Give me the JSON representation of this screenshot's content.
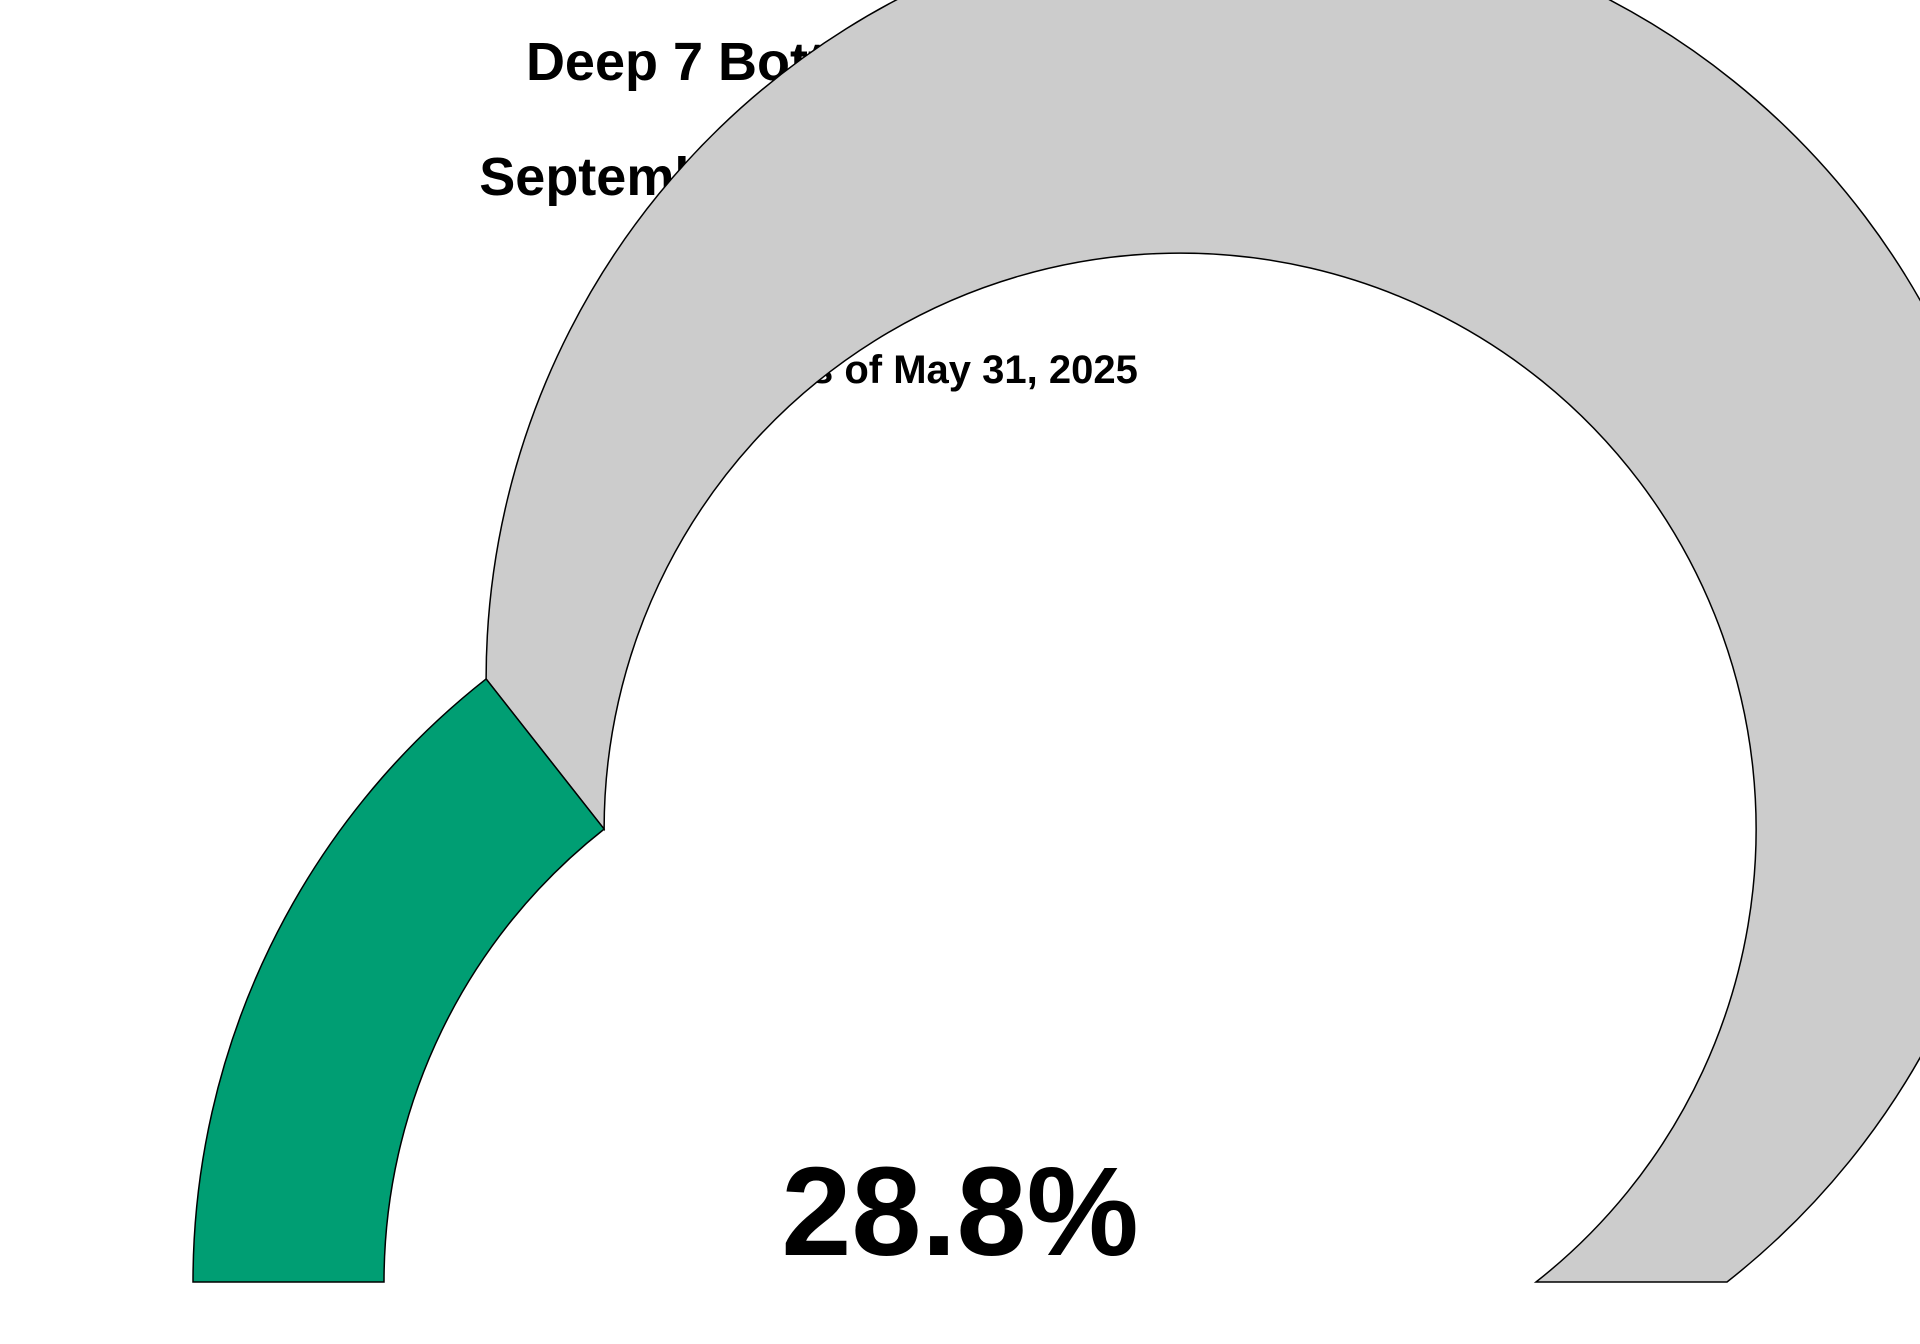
{
  "chart_data": {
    "type": "gauge",
    "title": "Deep 7 Bottomfish Annual Season",
    "subtitle": "September 01, 2024 - August 31, 2025",
    "caption": "As of May 31, 2025",
    "value": 28.8,
    "value_label": "28.8%",
    "range": [
      0,
      100
    ],
    "colors": {
      "filled": "#009E73",
      "remaining": "#CCCCCC",
      "outline": "#000000"
    }
  }
}
